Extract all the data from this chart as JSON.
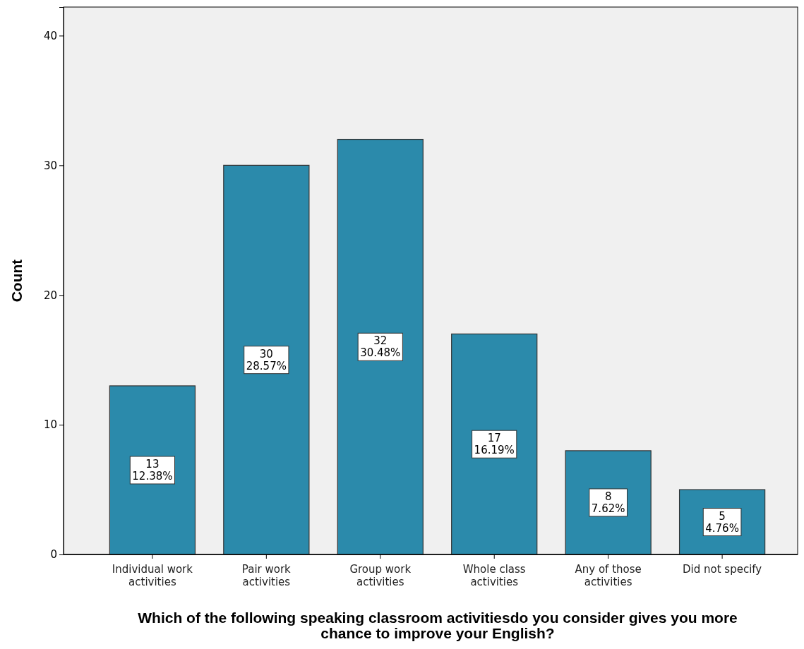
{
  "chart_data": {
    "type": "bar",
    "categories": [
      "Individual work activities",
      "Pair work activities",
      "Group work activities",
      "Whole class activities",
      "Any of those activities",
      "Did not specify"
    ],
    "values": [
      13,
      30,
      32,
      17,
      8,
      5
    ],
    "color": "#2b8aab",
    "value_labels": [
      "13\n12.38%",
      "30\n28.57%",
      "32\n30.48%",
      "17\n16.19%",
      "8\n7.62%",
      "5\n4.76%"
    ],
    "ylabel": "Count",
    "xlabel": "Which of the following speaking classroom activitiesdo you consider gives you more chance to improve your English?",
    "ylim": [
      0,
      42.2
    ],
    "yticks": [
      0,
      10,
      20,
      30,
      40
    ],
    "grid": false
  }
}
